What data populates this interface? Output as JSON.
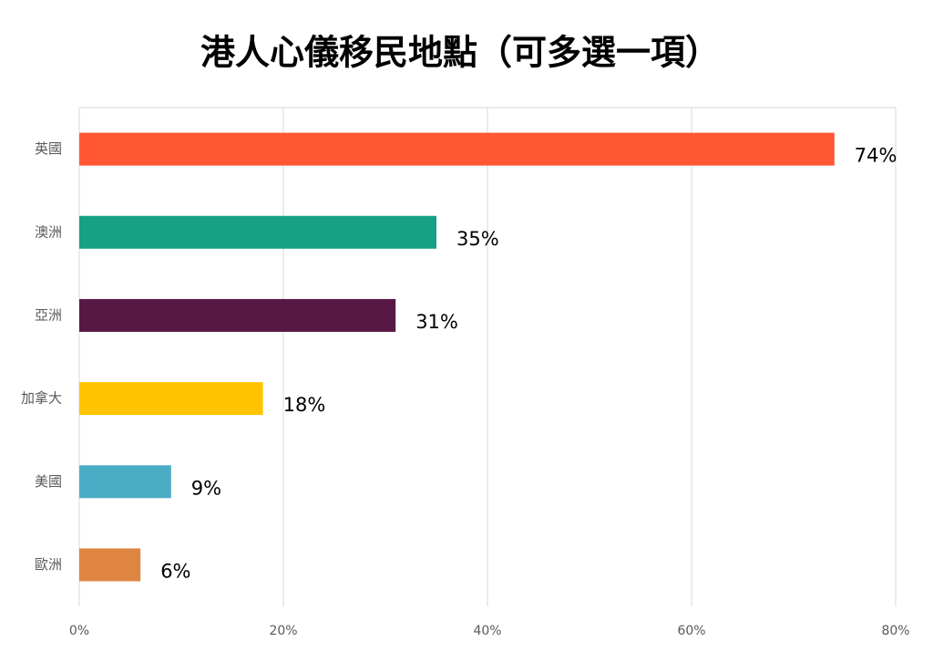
{
  "chart_data": {
    "type": "barh",
    "title": "港人心儀移民地點（可多選一項）",
    "categories": [
      "英國",
      "澳洲",
      "亞洲",
      "加拿大",
      "美國",
      "歐洲"
    ],
    "values": [
      74,
      35,
      31,
      18,
      9,
      6
    ],
    "value_labels": [
      "74%",
      "35%",
      "31%",
      "18%",
      "9%",
      "6%"
    ],
    "colors": [
      "#ff5733",
      "#16a085",
      "#581845",
      "#ffc300",
      "#4bacc6",
      "#de8541"
    ],
    "xlim": [
      0,
      80
    ],
    "xticks": [
      {
        "value": 0,
        "label": "0%"
      },
      {
        "value": 20,
        "label": "20%"
      },
      {
        "value": 40,
        "label": "40%"
      },
      {
        "value": 60,
        "label": "60%"
      },
      {
        "value": 80,
        "label": "80%"
      }
    ],
    "grid": true
  }
}
